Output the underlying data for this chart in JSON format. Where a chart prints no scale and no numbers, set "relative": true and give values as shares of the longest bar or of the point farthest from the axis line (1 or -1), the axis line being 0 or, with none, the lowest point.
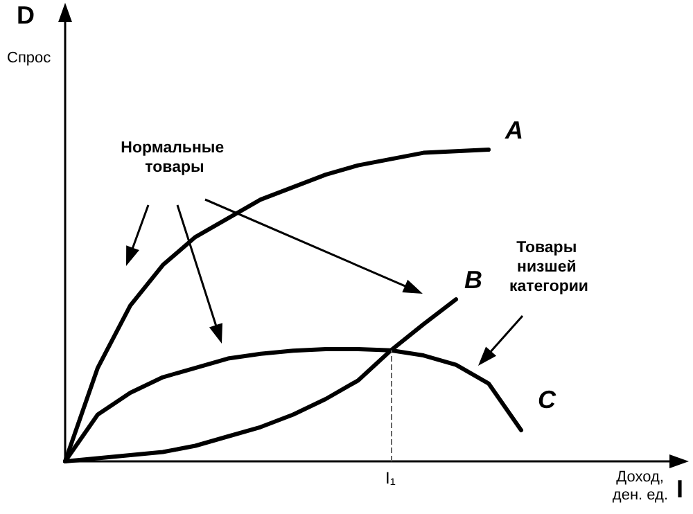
{
  "chart_data": {
    "type": "line",
    "relative": true,
    "ylabel": "D",
    "annotations": [
      "Спрос",
      "Доход, ден. ед.",
      "Нормальные товары",
      "Товары низшей категории",
      "I",
      "I₁"
    ],
    "categories": [
      null,
      null,
      null,
      null,
      null,
      null,
      null,
      null,
      null,
      null,
      null,
      null,
      null,
      null,
      null
    ],
    "series": [
      {
        "name": "A",
        "color": "#000000",
        "values": [
          0,
          0.3,
          0.5,
          0.63,
          0.72,
          0.78,
          0.84,
          0.88,
          0.92,
          0.95,
          0.97,
          0.99,
          0.995,
          1.0,
          null
        ]
      },
      {
        "name": "B",
        "color": "#000000",
        "values": [
          0,
          0.01,
          0.02,
          0.03,
          0.05,
          0.08,
          0.11,
          0.15,
          0.2,
          0.26,
          0.356,
          0.44,
          0.52,
          null,
          null
        ]
      },
      {
        "name": "C",
        "color": "#000000",
        "values": [
          0,
          0.15,
          0.22,
          0.27,
          0.3,
          0.33,
          0.345,
          0.355,
          0.36,
          0.36,
          0.356,
          0.34,
          0.31,
          0.25,
          0.1
        ]
      }
    ],
    "marker": "none",
    "line_style": "solid",
    "grid": false,
    "legend": false
  }
}
